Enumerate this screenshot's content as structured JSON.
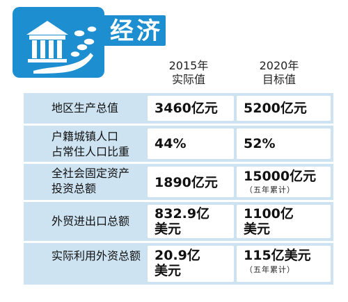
{
  "header": {
    "title": "经济",
    "icon": "bank-with-coins-icon",
    "accent_color": "#1d8fd1",
    "row_color": "#cde3f2"
  },
  "columns": [
    {
      "year": "2015年",
      "type": "实际值"
    },
    {
      "year": "2020年",
      "type": "目标值"
    }
  ],
  "rows": [
    {
      "label": [
        "地区生产总值"
      ],
      "actual": [
        "3460亿元"
      ],
      "target": [
        "5200亿元"
      ],
      "target_note": ""
    },
    {
      "label": [
        "户籍城镇人口",
        "占常住人口比重"
      ],
      "actual": [
        "44%"
      ],
      "target": [
        "52%"
      ],
      "target_note": ""
    },
    {
      "label": [
        "全社会固定资产",
        "投资总额"
      ],
      "actual": [
        "1890亿元"
      ],
      "target": [
        "15000亿元"
      ],
      "target_note": "（五年累计）"
    },
    {
      "label": [
        "外贸进出口总额"
      ],
      "actual": [
        "832.9亿",
        "美元"
      ],
      "target": [
        "1100亿",
        "美元"
      ],
      "target_note": ""
    },
    {
      "label": [
        "实际利用外资总额"
      ],
      "actual": [
        "20.9亿",
        "美元"
      ],
      "target": [
        "115亿美元"
      ],
      "target_note": "（五年累计）"
    }
  ]
}
